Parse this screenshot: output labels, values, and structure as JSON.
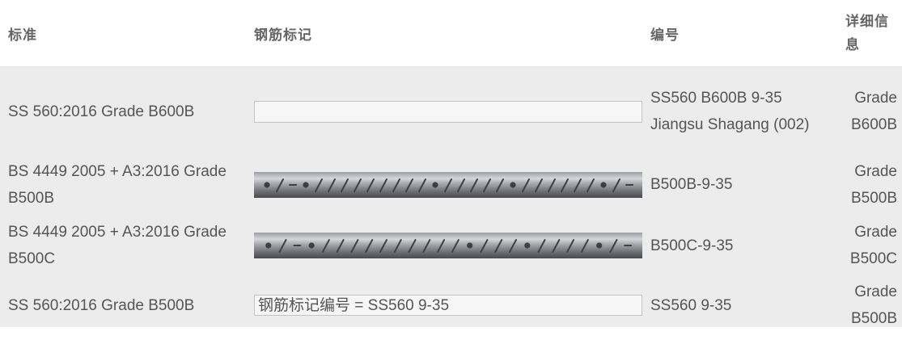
{
  "table": {
    "headers": {
      "standard": "标准",
      "marking": "钢筋标记",
      "number": "编号",
      "details": "详细信息"
    },
    "rows": [
      {
        "standard": "SS 560:2016 Grade B600B",
        "marking_text": "",
        "marking_type": "empty-box",
        "number": "SS560 B600B 9-35 Jiangsu Shagang (002)",
        "details": "Grade B600B"
      },
      {
        "standard": "BS 4449 2005 + A3:2016 Grade B500B",
        "marking_type": "rebar-image",
        "rebar_pattern": "•/-•/////////•/////•//////•/-",
        "number": "B500B-9-35",
        "details": "Grade B500B"
      },
      {
        "standard": "BS 4449 2005 + A3:2016 Grade B500C",
        "marking_type": "rebar-image",
        "rebar_pattern": "•/-•//////////•///•////•/-",
        "number": "B500C-9-35",
        "details": "Grade B500C"
      },
      {
        "standard": "SS 560:2016 Grade B500B",
        "marking_text": "钢筋标记编号 = SS560 9-35",
        "marking_type": "text-box",
        "number": "SS560 9-35",
        "details": "Grade B500B"
      }
    ]
  },
  "colors": {
    "row_background": "#ececec",
    "text": "#555555",
    "header_text": "#666666",
    "box_border": "#c4c4c4",
    "rebar_light": "#b4b4b8",
    "rebar_dark": "#5d5e63"
  }
}
